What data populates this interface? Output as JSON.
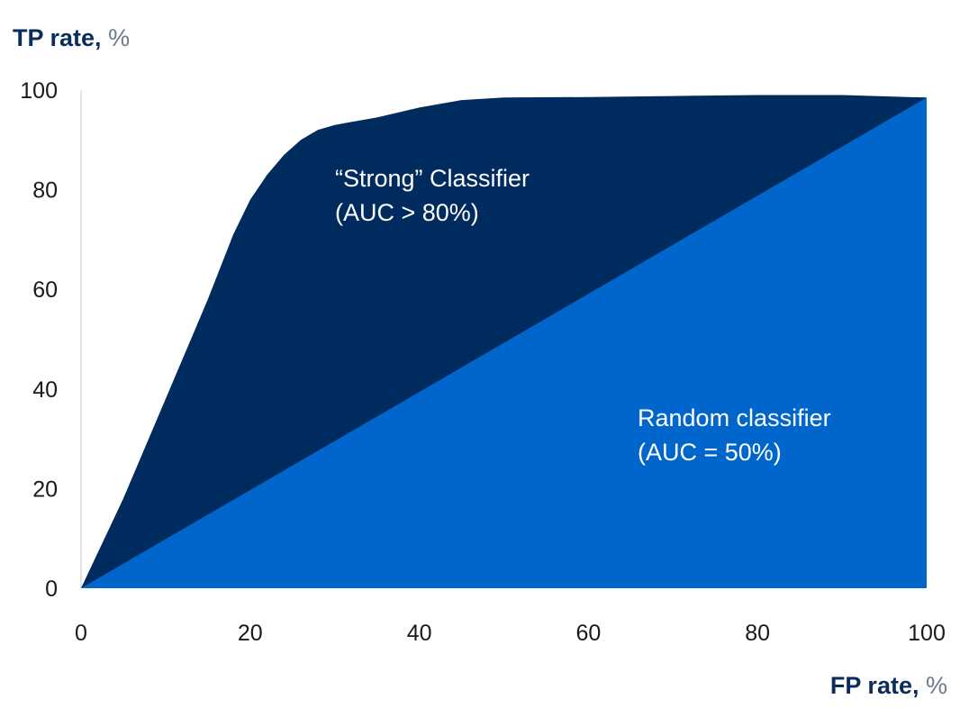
{
  "chart_data": {
    "type": "area",
    "ylabel": {
      "bold": "TP rate,",
      "unit": " %"
    },
    "xlabel": {
      "bold": "FP rate,",
      "unit": " %"
    },
    "xlim": [
      0,
      100
    ],
    "ylim": [
      0,
      100
    ],
    "x_ticks": [
      "0",
      "20",
      "40",
      "60",
      "80",
      "100"
    ],
    "y_ticks": [
      "0",
      "20",
      "40",
      "60",
      "80",
      "100"
    ],
    "series": [
      {
        "color": "#002b5e",
        "x": [
          0,
          5,
          10,
          15,
          18,
          20,
          22,
          24,
          26,
          28,
          30,
          35,
          40,
          45,
          50,
          60,
          70,
          80,
          90,
          100
        ],
        "y": [
          0,
          18,
          38,
          58,
          71,
          78,
          83,
          87,
          90,
          92,
          93,
          94.5,
          96.5,
          98,
          98.5,
          98.6,
          98.8,
          99,
          99,
          98.5
        ]
      },
      {
        "color": "#0066cc",
        "x": [
          0,
          100
        ],
        "y": [
          0,
          98.5
        ]
      }
    ],
    "annotations": [
      {
        "lines": [
          "“Strong” Classifier",
          "(AUC > 80%)"
        ]
      },
      {
        "lines": [
          "Random classifier",
          "(AUC = 50%)"
        ]
      }
    ],
    "grid": false
  }
}
